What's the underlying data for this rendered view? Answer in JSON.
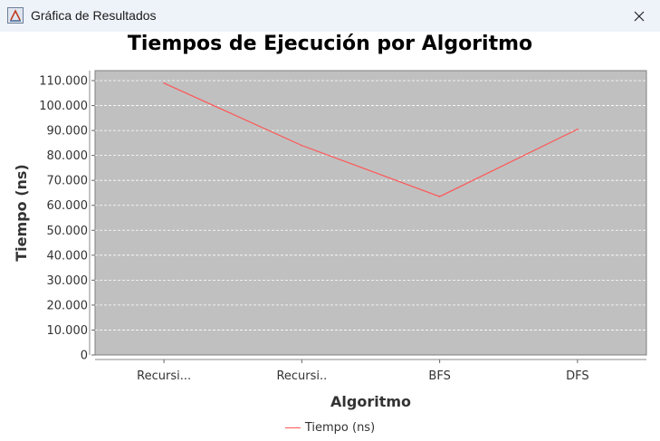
{
  "window": {
    "title": "Gráfica de Resultados",
    "icon": "java-app-icon",
    "close_icon": "close-icon"
  },
  "chart_data": {
    "type": "line",
    "title": "Tiempos de Ejecución por Algoritmo",
    "xlabel": "Algoritmo",
    "ylabel": "Tiempo (ns)",
    "categories": [
      "Recursi...",
      "Recursi..",
      "BFS",
      "DFS"
    ],
    "series": [
      {
        "name": "Tiempo (ns)",
        "values": [
          109000,
          84000,
          63500,
          90500
        ],
        "color": "#ff5555"
      }
    ],
    "ylim": [
      0,
      114000
    ],
    "yticks": [
      0,
      10000,
      20000,
      30000,
      40000,
      50000,
      60000,
      70000,
      80000,
      90000,
      100000,
      110000
    ],
    "ytick_labels": [
      "0",
      "10.000",
      "20.000",
      "30.000",
      "40.000",
      "50.000",
      "60.000",
      "70.000",
      "80.000",
      "90.000",
      "100.000",
      "110.000"
    ],
    "grid": true,
    "plot_background": "#c0c0c0",
    "legend_position": "bottom"
  }
}
